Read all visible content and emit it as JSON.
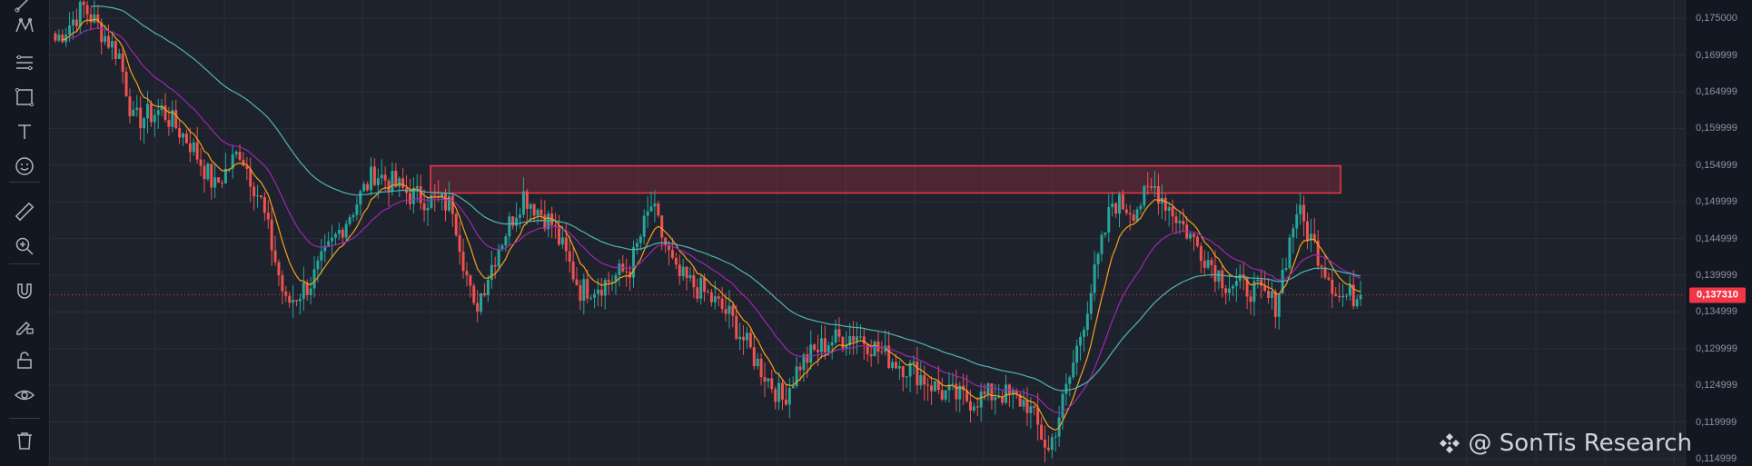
{
  "toolbar": {
    "tools": [
      {
        "name": "trend-line-icon"
      },
      {
        "name": "pattern-icon"
      },
      {
        "name": "fib-icon"
      },
      {
        "name": "rectangle-icon"
      },
      {
        "name": "text-icon"
      },
      {
        "name": "emoji-icon"
      },
      {
        "name": "ruler-icon"
      },
      {
        "name": "zoom-in-icon"
      },
      {
        "name": "magnet-icon"
      },
      {
        "name": "pencil-lock-icon"
      },
      {
        "name": "lock-icon"
      },
      {
        "name": "eye-icon"
      },
      {
        "name": "trash-icon"
      }
    ]
  },
  "watermark": {
    "text": "@ SonTis Research",
    "icon": "binance-logo-icon"
  },
  "colors": {
    "background": "#1e222d",
    "grid": "#2a2e39",
    "up": "#26a69a",
    "down": "#ef5350",
    "ema_fast": "#f7a21b",
    "ema_mid": "#9c27b0",
    "ema_slow": "#4fb5b5",
    "zone": "#f23645",
    "price_line": "#f23645"
  },
  "chart_data": {
    "type": "candlestick",
    "title": "",
    "xlabel": "",
    "ylabel": "",
    "ylim": [
      0.114,
      0.1775
    ],
    "grid": true,
    "y_ticks": [
      "0,175000",
      "0,169999",
      "0,164999",
      "0,159999",
      "0,154999",
      "0,149999",
      "0,144999",
      "0,139999",
      "0,134999",
      "0,129999",
      "0,124999",
      "0,119999",
      "0,114999"
    ],
    "current_price": 0.13731,
    "current_price_label": "0,137310",
    "resistance_zone": {
      "low": 0.1512,
      "high": 0.1549
    },
    "close_path": [
      {
        "i": 0,
        "v": 0.172
      },
      {
        "i": 8,
        "v": 0.1765
      },
      {
        "i": 18,
        "v": 0.17
      },
      {
        "i": 22,
        "v": 0.161
      },
      {
        "i": 30,
        "v": 0.1625
      },
      {
        "i": 38,
        "v": 0.158
      },
      {
        "i": 45,
        "v": 0.152
      },
      {
        "i": 52,
        "v": 0.157
      },
      {
        "i": 58,
        "v": 0.15
      },
      {
        "i": 65,
        "v": 0.136
      },
      {
        "i": 72,
        "v": 0.139
      },
      {
        "i": 80,
        "v": 0.146
      },
      {
        "i": 90,
        "v": 0.154
      },
      {
        "i": 100,
        "v": 0.151
      },
      {
        "i": 112,
        "v": 0.1495
      },
      {
        "i": 118,
        "v": 0.135
      },
      {
        "i": 125,
        "v": 0.144
      },
      {
        "i": 132,
        "v": 0.151
      },
      {
        "i": 140,
        "v": 0.147
      },
      {
        "i": 148,
        "v": 0.138
      },
      {
        "i": 155,
        "v": 0.139
      },
      {
        "i": 162,
        "v": 0.141
      },
      {
        "i": 168,
        "v": 0.1495
      },
      {
        "i": 175,
        "v": 0.14
      },
      {
        "i": 182,
        "v": 0.138
      },
      {
        "i": 190,
        "v": 0.1345
      },
      {
        "i": 198,
        "v": 0.128
      },
      {
        "i": 205,
        "v": 0.123
      },
      {
        "i": 210,
        "v": 0.128
      },
      {
        "i": 218,
        "v": 0.131
      },
      {
        "i": 226,
        "v": 0.132
      },
      {
        "i": 234,
        "v": 0.129
      },
      {
        "i": 242,
        "v": 0.127
      },
      {
        "i": 250,
        "v": 0.124
      },
      {
        "i": 258,
        "v": 0.123
      },
      {
        "i": 266,
        "v": 0.124
      },
      {
        "i": 274,
        "v": 0.1225
      },
      {
        "i": 280,
        "v": 0.116
      },
      {
        "i": 286,
        "v": 0.126
      },
      {
        "i": 292,
        "v": 0.138
      },
      {
        "i": 298,
        "v": 0.15
      },
      {
        "i": 304,
        "v": 0.149
      },
      {
        "i": 310,
        "v": 0.152
      },
      {
        "i": 316,
        "v": 0.148
      },
      {
        "i": 322,
        "v": 0.144
      },
      {
        "i": 330,
        "v": 0.139
      },
      {
        "i": 338,
        "v": 0.138
      },
      {
        "i": 344,
        "v": 0.136
      },
      {
        "i": 350,
        "v": 0.149
      },
      {
        "i": 356,
        "v": 0.143
      },
      {
        "i": 362,
        "v": 0.137
      },
      {
        "i": 368,
        "v": 0.1373
      }
    ],
    "candle_count": 369
  }
}
